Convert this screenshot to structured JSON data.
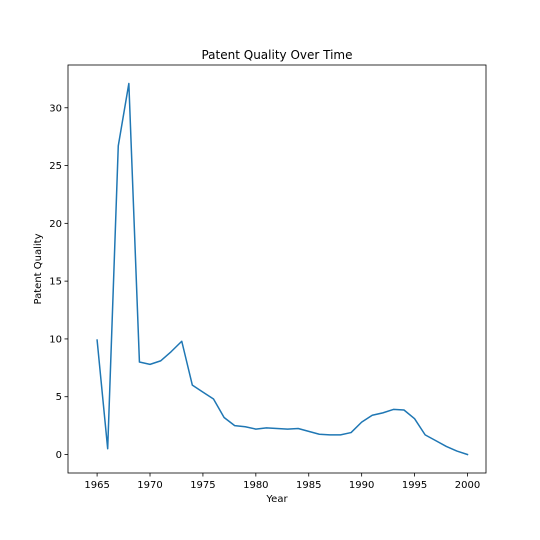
{
  "chart_data": {
    "type": "line",
    "title": "Patent Quality Over Time",
    "xlabel": "Year",
    "ylabel": "Patent Quality",
    "xlim": [
      1962.25,
      2001.75
    ],
    "ylim": [
      -1.6,
      33.7
    ],
    "xticks": [
      1965,
      1970,
      1975,
      1980,
      1985,
      1990,
      1995,
      2000
    ],
    "yticks": [
      0,
      5,
      10,
      15,
      20,
      25,
      30
    ],
    "grid": false,
    "legend": "none",
    "series": [
      {
        "color": "#1f77b4",
        "x": [
          1965,
          1966,
          1967,
          1968,
          1969,
          1970,
          1971,
          1972,
          1973,
          1974,
          1975,
          1976,
          1977,
          1978,
          1979,
          1980,
          1981,
          1982,
          1983,
          1984,
          1985,
          1986,
          1987,
          1988,
          1989,
          1990,
          1991,
          1992,
          1993,
          1994,
          1995,
          1996,
          1997,
          1998,
          1999,
          2000
        ],
        "y": [
          9.9,
          0.5,
          26.7,
          32.1,
          8.0,
          7.8,
          8.1,
          8.9,
          9.8,
          6.0,
          5.4,
          4.8,
          3.2,
          2.5,
          2.4,
          2.2,
          2.3,
          2.25,
          2.2,
          2.25,
          2.0,
          1.75,
          1.7,
          1.7,
          1.9,
          2.8,
          3.4,
          3.6,
          3.9,
          3.85,
          3.1,
          1.7,
          1.2,
          0.7,
          0.3,
          0.0
        ]
      }
    ]
  }
}
